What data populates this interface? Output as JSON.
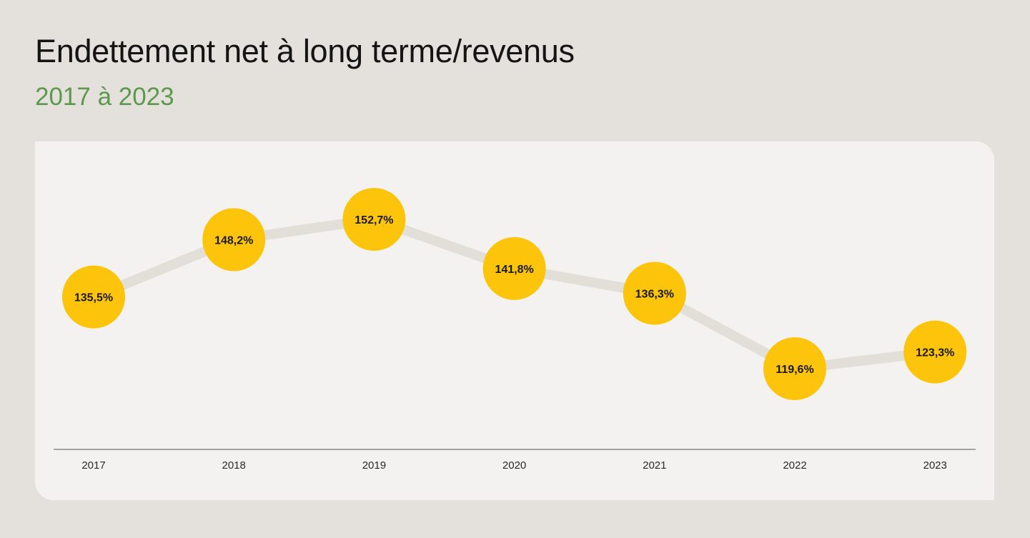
{
  "chart_data": {
    "type": "line",
    "title": "Endettement net à long terme/revenus",
    "subtitle": "2017 à 2023",
    "categories": [
      "2017",
      "2018",
      "2019",
      "2020",
      "2021",
      "2022",
      "2023"
    ],
    "values": [
      135.5,
      148.2,
      152.7,
      141.8,
      136.3,
      119.6,
      123.3
    ],
    "labels": [
      "135,5%",
      "148,2%",
      "152,7%",
      "141,8%",
      "136,3%",
      "119,6%",
      "123,3%"
    ],
    "xlabel": "",
    "ylabel": "",
    "grid": false,
    "colors": {
      "marker": "#fcc40a",
      "line": "#e2dfd9",
      "axis": "#8a8a8a",
      "subtitle": "#5b9a4c"
    }
  }
}
